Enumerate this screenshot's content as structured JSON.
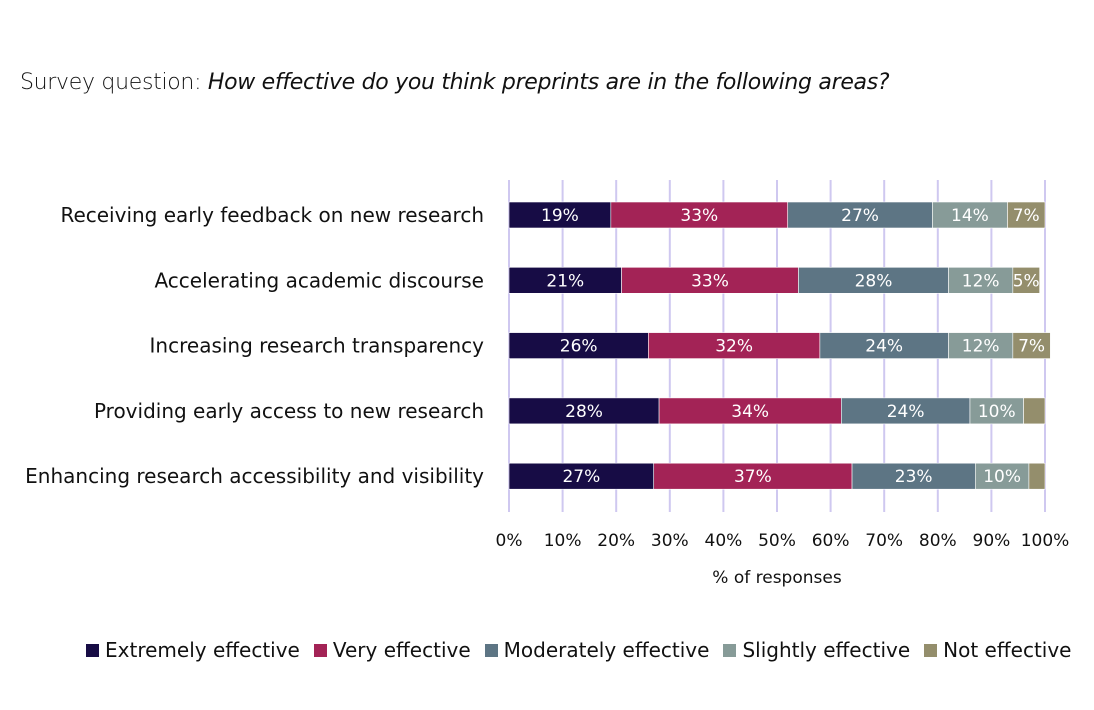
{
  "title": {
    "prefix": "Survey question: ",
    "question": "How effective do you think preprints are in the following areas?"
  },
  "chart_data": {
    "type": "bar",
    "orientation": "horizontal",
    "stacked": true,
    "categories": [
      "Receiving early feedback on new research",
      "Accelerating academic discourse",
      "Increasing research transparency",
      "Providing early access to new research",
      "Enhancing research accessibility and visibility"
    ],
    "series": [
      {
        "name": "Extremely effective",
        "color": "#170c45",
        "values": [
          19,
          21,
          26,
          28,
          27
        ],
        "labels": [
          "19%",
          "21%",
          "26%",
          "28%",
          "27%"
        ]
      },
      {
        "name": "Very effective",
        "color": "#a32356",
        "values": [
          33,
          33,
          32,
          34,
          37
        ],
        "labels": [
          "33%",
          "33%",
          "32%",
          "34%",
          "37%"
        ]
      },
      {
        "name": "Moderately effective",
        "color": "#5d7584",
        "values": [
          27,
          28,
          24,
          24,
          23
        ],
        "labels": [
          "27%",
          "28%",
          "24%",
          "24%",
          "23%"
        ]
      },
      {
        "name": "Slightly effective",
        "color": "#879b98",
        "values": [
          14,
          12,
          12,
          10,
          10
        ],
        "labels": [
          "14%",
          "12%",
          "12%",
          "10%",
          "10%"
        ]
      },
      {
        "name": "Not effective",
        "color": "#948e6c",
        "values": [
          7,
          5,
          7,
          4,
          3
        ],
        "labels": [
          "7%",
          "5%",
          "7%",
          "",
          ""
        ]
      }
    ],
    "xlabel": "% of responses",
    "xlim": [
      0,
      100
    ],
    "xticks": [
      "0%",
      "10%",
      "20%",
      "30%",
      "40%",
      "50%",
      "60%",
      "70%",
      "80%",
      "90%",
      "100%"
    ],
    "grid": "vertical",
    "grid_color": "#cfc8f0",
    "legend": "bottom"
  }
}
